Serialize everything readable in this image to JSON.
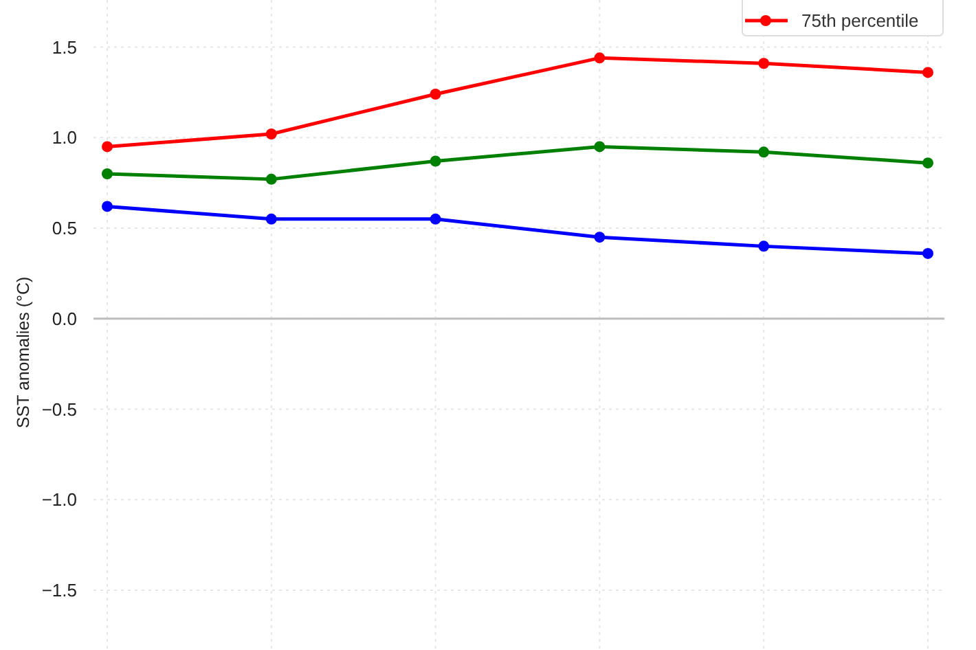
{
  "chart_data": {
    "type": "line",
    "ylabel": "SST anomalies (°C)",
    "categories": [
      null,
      null,
      null,
      null,
      null,
      null
    ],
    "series": [
      {
        "name": "75th percentile",
        "color": "#ff0000",
        "values": [
          0.95,
          1.02,
          1.24,
          1.44,
          1.41,
          1.36
        ]
      },
      {
        "color": "#008000",
        "values": [
          0.8,
          0.77,
          0.87,
          0.95,
          0.92,
          0.86
        ]
      },
      {
        "color": "#0000ff",
        "values": [
          0.62,
          0.55,
          0.55,
          0.45,
          0.4,
          0.36
        ]
      }
    ],
    "ylim": [
      -1.83,
      1.76
    ],
    "yticks": [
      {
        "value": -1.5,
        "label": "−1.5"
      },
      {
        "value": -1,
        "label": "−1.0"
      },
      {
        "value": -0.5,
        "label": "−0.5"
      },
      {
        "value": 0,
        "label": "0.0"
      },
      {
        "value": 0.5,
        "label": "0.5"
      },
      {
        "value": 1,
        "label": "1.0"
      },
      {
        "value": 1.5,
        "label": "1.5"
      }
    ],
    "ref_lines": [
      {
        "axis": "y",
        "value": 0,
        "color": "#bdbdbd"
      }
    ],
    "grid": true,
    "legend": "top right",
    "marker": "circle",
    "line_style": "solid"
  }
}
